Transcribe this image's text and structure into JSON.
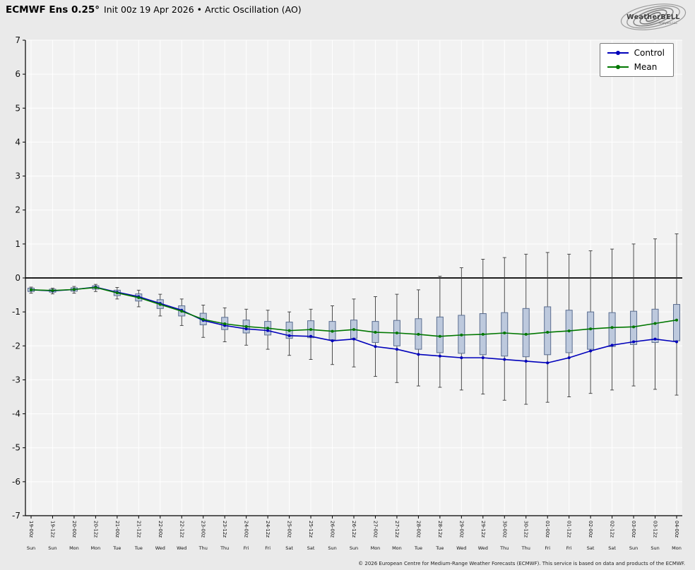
{
  "header": {
    "title_bold": "ECMWF Ens 0.25°",
    "title_rest": "Init 00z 19 Apr 2026 • Arctic Oscillation (AO)"
  },
  "logo": {
    "text": "WeatherBELL",
    "subtext": "Analytics LLC"
  },
  "legend": {
    "control_label": "Control",
    "mean_label": "Mean"
  },
  "footer": {
    "copyright": "© 2026 European Centre for Medium-Range Weather Forecasts (ECMWF). This service is based on data and products of the ECMWF."
  },
  "colors": {
    "background": "#eaeaea",
    "plot_bg": "#f2f2f2",
    "grid": "#ffffff",
    "axis": "#000000",
    "zero": "#000000",
    "control": "#0000bb",
    "mean": "#007700",
    "box_fill": "#bdc9dd",
    "box_border": "#5a6d90",
    "whisker": "#3a3a3a",
    "tick_text": "#111111"
  },
  "chart_data": {
    "type": "box-whisker-ensemble",
    "title": "ECMWF Ens 0.25° Init 00z 19 Apr 2026 • Arctic Oscillation (AO)",
    "ylim": [
      -7,
      7
    ],
    "ytick_step": 1,
    "zero_line": 0,
    "grid": true,
    "legend_position": "top-right",
    "x_labels": [
      "19-00z",
      "19-12z",
      "20-00z",
      "20-12z",
      "21-00z",
      "21-12z",
      "22-00z",
      "22-12z",
      "23-00z",
      "23-12z",
      "24-00z",
      "24-12z",
      "25-00z",
      "25-12z",
      "26-00z",
      "26-12z",
      "27-00z",
      "27-12z",
      "28-00z",
      "28-12z",
      "29-00z",
      "29-12z",
      "30-00z",
      "30-12z",
      "01-00z",
      "01-12z",
      "02-00z",
      "02-12z",
      "03-00z",
      "03-12z",
      "04-00z"
    ],
    "day_labels": [
      "Sun",
      "Sun",
      "Mon",
      "Mon",
      "Tue",
      "Tue",
      "Wed",
      "Wed",
      "Thu",
      "Thu",
      "Fri",
      "Fri",
      "Sat",
      "Sat",
      "Sun",
      "Sun",
      "Mon",
      "Mon",
      "Tue",
      "Tue",
      "Wed",
      "Wed",
      "Thu",
      "Thu",
      "Fri",
      "Fri",
      "Sat",
      "Sat",
      "Sun",
      "Sun",
      "Mon"
    ],
    "series": [
      {
        "name": "Control",
        "color_key": "control",
        "values": [
          -0.35,
          -0.38,
          -0.34,
          -0.27,
          -0.42,
          -0.55,
          -0.75,
          -0.95,
          -1.25,
          -1.4,
          -1.5,
          -1.55,
          -1.7,
          -1.72,
          -1.85,
          -1.8,
          -2.02,
          -2.1,
          -2.25,
          -2.3,
          -2.35,
          -2.35,
          -2.4,
          -2.45,
          -2.5,
          -2.35,
          -2.15,
          -1.98,
          -1.88,
          -1.8,
          -1.88
        ]
      },
      {
        "name": "Mean",
        "color_key": "mean",
        "values": [
          -0.35,
          -0.37,
          -0.34,
          -0.28,
          -0.44,
          -0.58,
          -0.78,
          -0.98,
          -1.22,
          -1.35,
          -1.43,
          -1.48,
          -1.55,
          -1.52,
          -1.57,
          -1.52,
          -1.6,
          -1.62,
          -1.66,
          -1.72,
          -1.68,
          -1.66,
          -1.62,
          -1.66,
          -1.6,
          -1.56,
          -1.5,
          -1.46,
          -1.44,
          -1.34,
          -1.24
        ]
      }
    ],
    "boxes": {
      "low": [
        -0.4,
        -0.42,
        -0.39,
        -0.33,
        -0.52,
        -0.68,
        -0.9,
        -1.12,
        -1.38,
        -1.52,
        -1.62,
        -1.68,
        -1.78,
        -1.76,
        -1.82,
        -1.78,
        -1.9,
        -2.0,
        -2.1,
        -2.2,
        -2.22,
        -2.26,
        -2.3,
        -2.32,
        -2.26,
        -2.2,
        -2.1,
        -2.02,
        -1.96,
        -1.9,
        -1.85
      ],
      "high": [
        -0.3,
        -0.33,
        -0.29,
        -0.23,
        -0.36,
        -0.47,
        -0.64,
        -0.82,
        -1.04,
        -1.16,
        -1.24,
        -1.28,
        -1.3,
        -1.26,
        -1.28,
        -1.24,
        -1.28,
        -1.25,
        -1.2,
        -1.15,
        -1.1,
        -1.05,
        -1.02,
        -0.9,
        -0.85,
        -0.95,
        -1.0,
        -1.02,
        -0.98,
        -0.92,
        -0.78
      ]
    },
    "whiskers": {
      "low": [
        -0.45,
        -0.47,
        -0.45,
        -0.4,
        -0.62,
        -0.85,
        -1.12,
        -1.4,
        -1.75,
        -1.88,
        -1.98,
        -2.1,
        -2.28,
        -2.4,
        -2.55,
        -2.62,
        -2.9,
        -3.08,
        -3.18,
        -3.22,
        -3.3,
        -3.42,
        -3.6,
        -3.72,
        -3.66,
        -3.5,
        -3.4,
        -3.3,
        -3.18,
        -3.28,
        -3.45
      ],
      "high": [
        -0.27,
        -0.3,
        -0.25,
        -0.19,
        -0.28,
        -0.36,
        -0.48,
        -0.62,
        -0.8,
        -0.88,
        -0.92,
        -0.95,
        -1.0,
        -0.92,
        -0.82,
        -0.62,
        -0.55,
        -0.48,
        -0.35,
        0.05,
        0.3,
        0.55,
        0.6,
        0.7,
        0.75,
        0.7,
        0.8,
        0.85,
        1.0,
        1.15,
        1.3
      ]
    }
  }
}
